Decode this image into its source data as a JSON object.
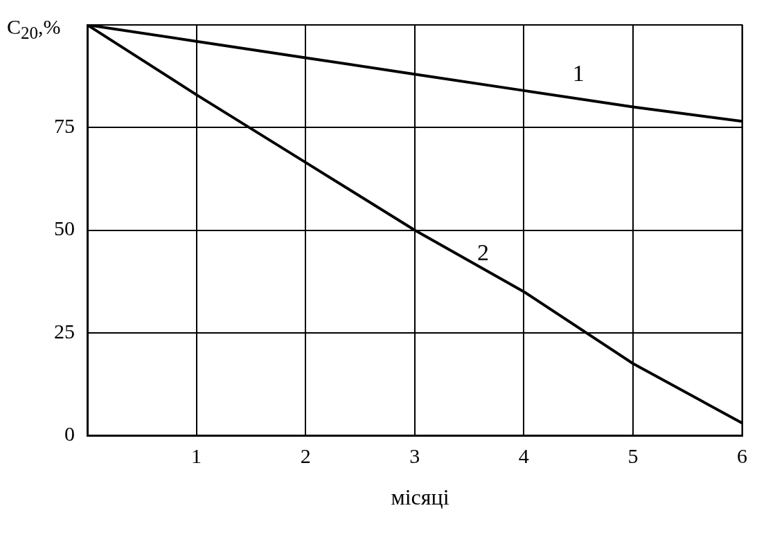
{
  "chart_data": {
    "type": "line",
    "xlabel": "місяці",
    "ylabel": "C$_{20}$,%",
    "x": [
      0,
      1,
      2,
      3,
      4,
      5,
      6
    ],
    "series": [
      {
        "name": "1",
        "color": "#000000",
        "values": [
          100,
          96,
          92,
          88,
          84,
          80,
          76.5
        ]
      },
      {
        "name": "2",
        "color": "#000000",
        "values": [
          100,
          83,
          66.5,
          50,
          35,
          17.5,
          3
        ]
      }
    ],
    "xlim": [
      0,
      6
    ],
    "xticks": [
      1,
      2,
      3,
      4,
      5,
      6
    ],
    "ylim": [
      0,
      100
    ],
    "yticks": [
      0,
      25,
      50,
      75
    ],
    "grid": true,
    "legend": false,
    "marker": "none",
    "line_style": "solid"
  }
}
